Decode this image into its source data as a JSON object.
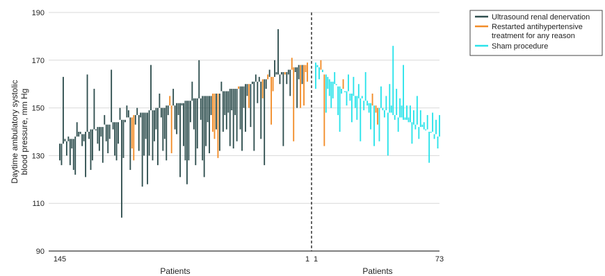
{
  "chart_data": {
    "type": "bar",
    "title": "",
    "ylabel": [
      "Daytime ambulatory systolic",
      "blood pressure, mm Hg"
    ],
    "ylim": [
      90,
      190
    ],
    "yticks": [
      90,
      110,
      130,
      150,
      170,
      190
    ],
    "grid": true,
    "legend_placement": "top-right",
    "colors": {
      "denervation": "#2f4f4f",
      "restarted": "#f28c28",
      "sham": "#29e3ea",
      "grid": "#d9d9d9",
      "divider": "#000000"
    },
    "legend": [
      {
        "key": "denervation",
        "label": [
          "Ultrasound renal denervation"
        ]
      },
      {
        "key": "restarted",
        "label": [
          "Restarted antihypertensive",
          "treatment for any reason"
        ]
      },
      {
        "key": "sham",
        "label": [
          "Sham procedure"
        ]
      }
    ],
    "panels": [
      {
        "name": "renal-denervation",
        "xlabel": "Patients",
        "x_start_label": "145",
        "x_end_label": "1",
        "count": 145,
        "color_key": "denervation",
        "restarted_indices": [
          42,
          43,
          64,
          65,
          89,
          90,
          92,
          104,
          110,
          118,
          121,
          123,
          124,
          131,
          135,
          136,
          140,
          142,
          143,
          144
        ],
        "baseline": [
          135,
          135,
          135,
          136,
          136,
          136,
          137,
          137,
          137,
          138,
          138,
          138,
          139,
          139,
          139,
          140,
          140,
          140,
          141,
          141,
          141,
          141,
          142,
          142,
          142,
          142,
          143,
          143,
          143,
          143,
          144,
          144,
          144,
          144,
          144,
          145,
          145,
          145,
          145,
          146,
          146,
          146,
          146,
          147,
          147,
          147,
          147,
          148,
          148,
          148,
          148,
          148,
          149,
          149,
          149,
          149,
          150,
          150,
          150,
          150,
          150,
          150,
          151,
          151,
          151,
          151,
          151,
          151,
          152,
          152,
          152,
          152,
          152,
          153,
          153,
          153,
          153,
          153,
          154,
          154,
          154,
          154,
          154,
          155,
          155,
          155,
          155,
          155,
          155,
          156,
          156,
          156,
          156,
          156,
          157,
          157,
          157,
          157,
          157,
          158,
          158,
          158,
          158,
          158,
          159,
          159,
          159,
          159,
          160,
          160,
          160,
          160,
          160,
          161,
          161,
          161,
          161,
          161,
          162,
          162,
          162,
          162,
          163,
          163,
          163,
          163,
          164,
          164,
          164,
          164,
          165,
          165,
          165,
          166,
          166,
          166,
          167,
          167,
          167,
          168,
          168,
          168,
          168,
          168,
          169
        ],
        "followup": [
          128,
          126,
          163,
          137,
          130,
          138,
          126,
          133,
          124,
          122,
          144,
          140,
          140,
          134,
          136,
          121,
          164,
          137,
          124,
          128,
          158,
          141,
          135,
          132,
          138,
          127,
          147,
          136,
          131,
          137,
          166,
          141,
          130,
          128,
          135,
          150,
          104,
          129,
          144,
          151,
          149,
          124,
          133,
          128,
          143,
          150,
          132,
          146,
          117,
          130,
          137,
          118,
          130,
          168,
          128,
          136,
          141,
          126,
          156,
          146,
          132,
          137,
          128,
          147,
          155,
          131,
          158,
          141,
          139,
          147,
          121,
          151,
          134,
          128,
          118,
          128,
          144,
          161,
          141,
          126,
          133,
          170,
          145,
          128,
          121,
          134,
          144,
          131,
          147,
          140,
          137,
          141,
          129,
          132,
          161,
          140,
          147,
          141,
          148,
          134,
          149,
          133,
          147,
          136,
          158,
          141,
          132,
          150,
          140,
          155,
          150,
          142,
          161,
          132,
          164,
          152,
          163,
          137,
          154,
          126,
          158,
          164,
          166,
          143,
          157,
          170,
          165,
          183,
          160,
          165,
          134,
          164,
          160,
          164,
          155,
          171,
          136,
          165,
          150,
          162,
          150,
          160,
          151,
          165,
          161
        ]
      },
      {
        "name": "sham",
        "xlabel": "Patients",
        "x_start_label": "1",
        "x_end_label": "73",
        "count": 73,
        "color_key": "sham",
        "restarted_indices": [
          3,
          5,
          16,
          33,
          35,
          36
        ],
        "baseline": [
          169,
          168,
          167,
          166,
          165,
          164,
          164,
          163,
          162,
          161,
          161,
          160,
          160,
          159,
          159,
          158,
          158,
          157,
          157,
          157,
          156,
          156,
          155,
          155,
          155,
          154,
          154,
          154,
          153,
          153,
          153,
          152,
          152,
          151,
          151,
          151,
          150,
          150,
          150,
          149,
          149,
          149,
          148,
          148,
          148,
          147,
          147,
          147,
          146,
          146,
          146,
          145,
          145,
          145,
          144,
          144,
          144,
          143,
          143,
          143,
          142,
          142,
          142,
          141,
          141,
          141,
          140,
          140,
          140,
          139,
          139,
          138,
          138
        ],
        "followup": [
          158,
          167,
          162,
          170,
          166,
          134,
          148,
          158,
          155,
          150,
          154,
          165,
          160,
          147,
          140,
          156,
          162,
          157,
          151,
          164,
          153,
          144,
          163,
          150,
          145,
          160,
          136,
          155,
          149,
          165,
          151,
          148,
          141,
          156,
          134,
          148,
          143,
          136,
          159,
          150,
          146,
          155,
          130,
          160,
          151,
          176,
          145,
          158,
          140,
          154,
          151,
          168,
          146,
          151,
          146,
          151,
          135,
          149,
          141,
          155,
          137,
          149,
          143,
          144,
          141,
          147,
          127,
          140,
          148,
          137,
          145,
          133,
          147
        ]
      }
    ]
  }
}
